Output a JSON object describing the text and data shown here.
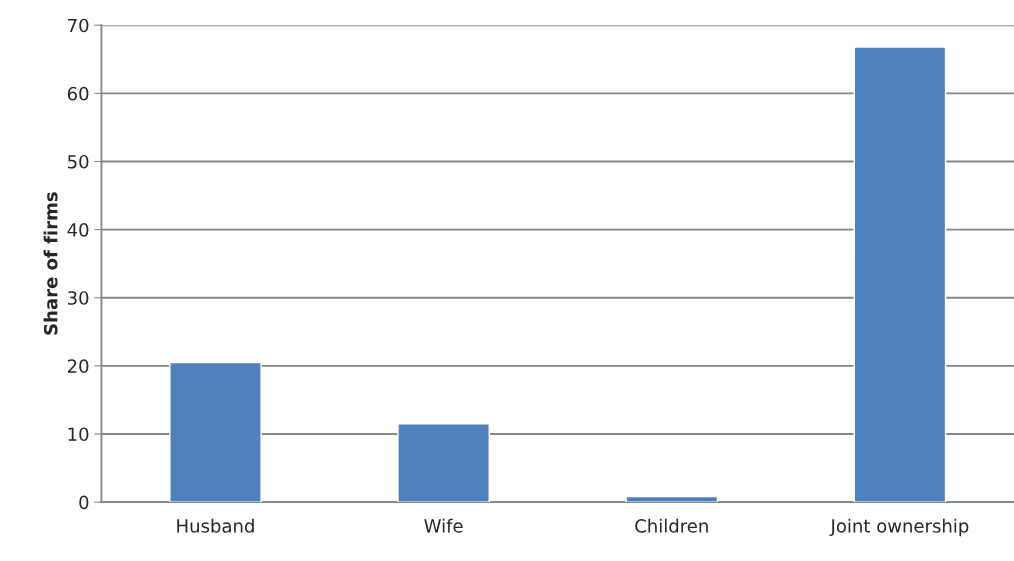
{
  "chart_data": {
    "type": "bar",
    "ylabel": "Share of firms",
    "categories": [
      "Husband",
      "Wife",
      "Children",
      "Joint ownership"
    ],
    "values": [
      20.5,
      11.5,
      0.8,
      66.8
    ],
    "color": "#4f81bd",
    "ylim": [
      0,
      70
    ],
    "yticks": [
      0,
      10,
      20,
      30,
      40,
      50,
      60,
      70
    ],
    "grid": "y"
  }
}
